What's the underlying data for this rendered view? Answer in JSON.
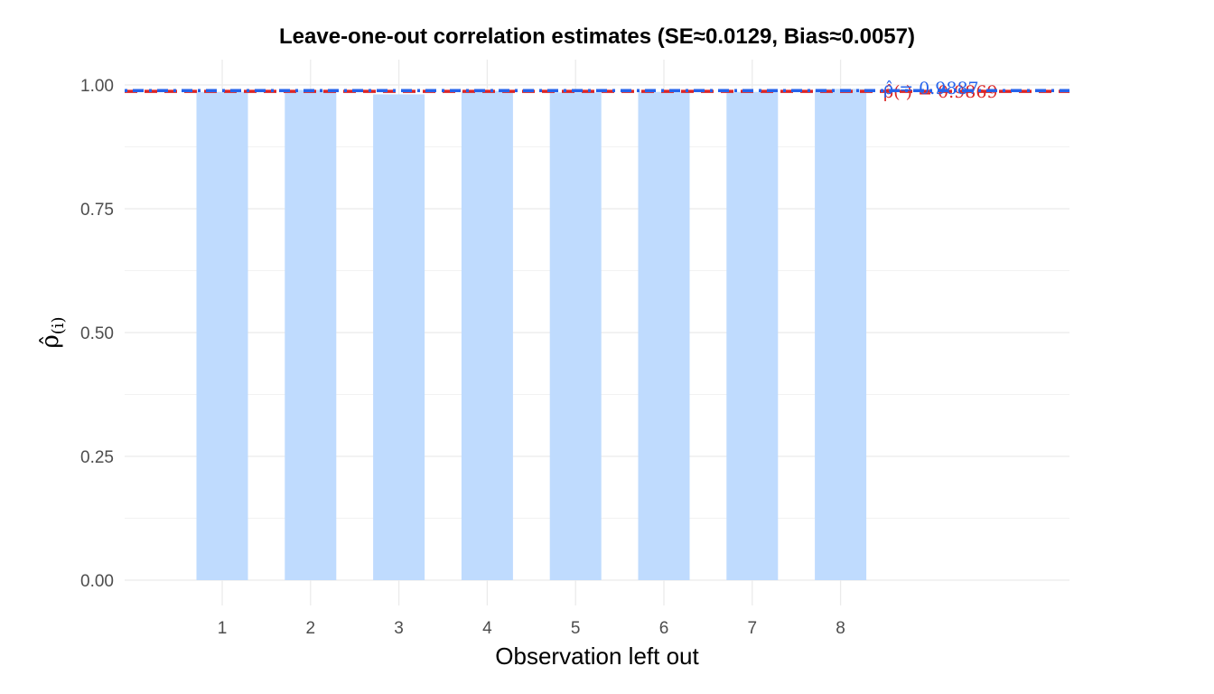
{
  "chart_data": {
    "type": "bar",
    "title": "Leave-one-out correlation estimates  (SE≈0.0129, Bias≈0.0057)",
    "xlabel": "Observation left out",
    "ylabel": "ρ̂(i)",
    "ylabel_main": "ρ̂",
    "ylabel_sub": "(i)",
    "categories": [
      "1",
      "2",
      "3",
      "4",
      "5",
      "6",
      "7",
      "8"
    ],
    "values": [
      0.986,
      0.99,
      0.981,
      0.988,
      0.985,
      0.986,
      0.986,
      0.992
    ],
    "ylim": [
      0,
      1.0
    ],
    "yticks": [
      0,
      0.25,
      0.5,
      0.75,
      1.0
    ],
    "ytick_labels": [
      "0.00",
      "0.25",
      "0.50",
      "0.75",
      "1.00"
    ],
    "grid": true,
    "bar_color": "#BFDBFE",
    "reference_lines": [
      {
        "value": 0.9869,
        "style": "dashed",
        "color": "#DC2626",
        "label": "ρ̂(·) = 0.9869"
      },
      {
        "value": 0.9887,
        "style": "dotdash",
        "color": "#2563EB",
        "label": "ρ̂ = 0.9887"
      }
    ]
  }
}
